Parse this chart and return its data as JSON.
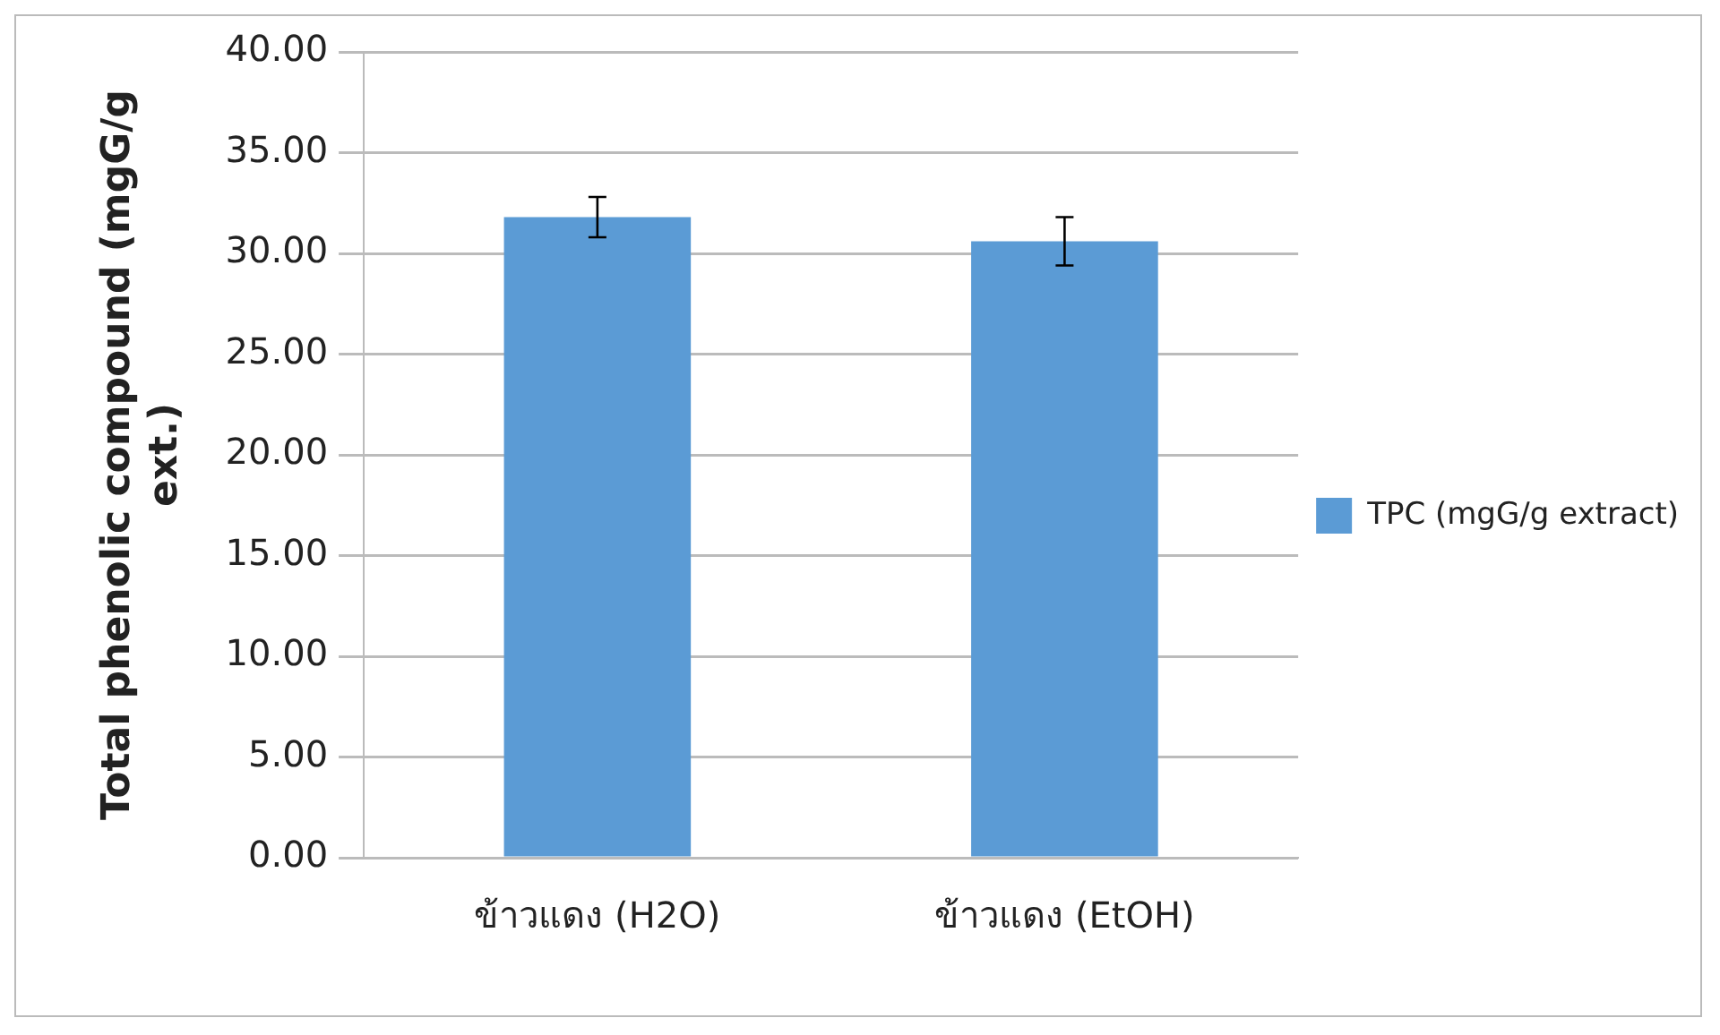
{
  "chart_data": {
    "type": "bar",
    "ylabel": "Total phenolic compound (mgG/g ext.)",
    "categories": [
      "ข้าวแดง (H2O)",
      "ข้าวแดง (EtOH)"
    ],
    "series": [
      {
        "name": "TPC (mgG/g extract)",
        "color": "#5b9bd5",
        "values": [
          31.8,
          30.6
        ],
        "errors": [
          1.0,
          1.2
        ]
      }
    ],
    "ylim": [
      0,
      40
    ],
    "yticks": [
      {
        "value": 0,
        "label": "0.00"
      },
      {
        "value": 5,
        "label": "5.00"
      },
      {
        "value": 10,
        "label": "10.00"
      },
      {
        "value": 15,
        "label": "15.00"
      },
      {
        "value": 20,
        "label": "20.00"
      },
      {
        "value": 25,
        "label": "25.00"
      },
      {
        "value": 30,
        "label": "30.00"
      },
      {
        "value": 35,
        "label": "35.00"
      },
      {
        "value": 40,
        "label": "40.00"
      }
    ],
    "grid": "y",
    "legend": "right"
  }
}
